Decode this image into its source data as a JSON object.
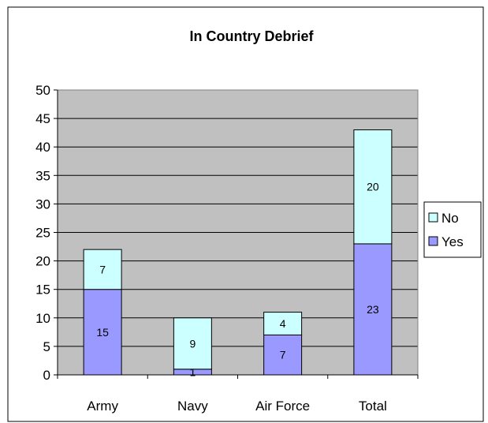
{
  "chart_data": {
    "type": "bar",
    "stacked": true,
    "title": "In Country Debrief",
    "xlabel": "",
    "ylabel": "",
    "categories": [
      "Army",
      "Navy",
      "Air Force",
      "Total"
    ],
    "series": [
      {
        "name": "Yes",
        "values": [
          15,
          1,
          7,
          23
        ],
        "color": "#9999ff"
      },
      {
        "name": "No",
        "values": [
          7,
          9,
          4,
          20
        ],
        "color": "#ccffff"
      }
    ],
    "ylim": [
      0,
      50
    ],
    "yticks": [
      "0",
      "5",
      "10",
      "15",
      "20",
      "25",
      "30",
      "35",
      "40",
      "45",
      "50"
    ],
    "grid": true,
    "plot_background": "#c0c0c0",
    "legend": {
      "position": "right",
      "order": [
        "No",
        "Yes"
      ]
    }
  }
}
